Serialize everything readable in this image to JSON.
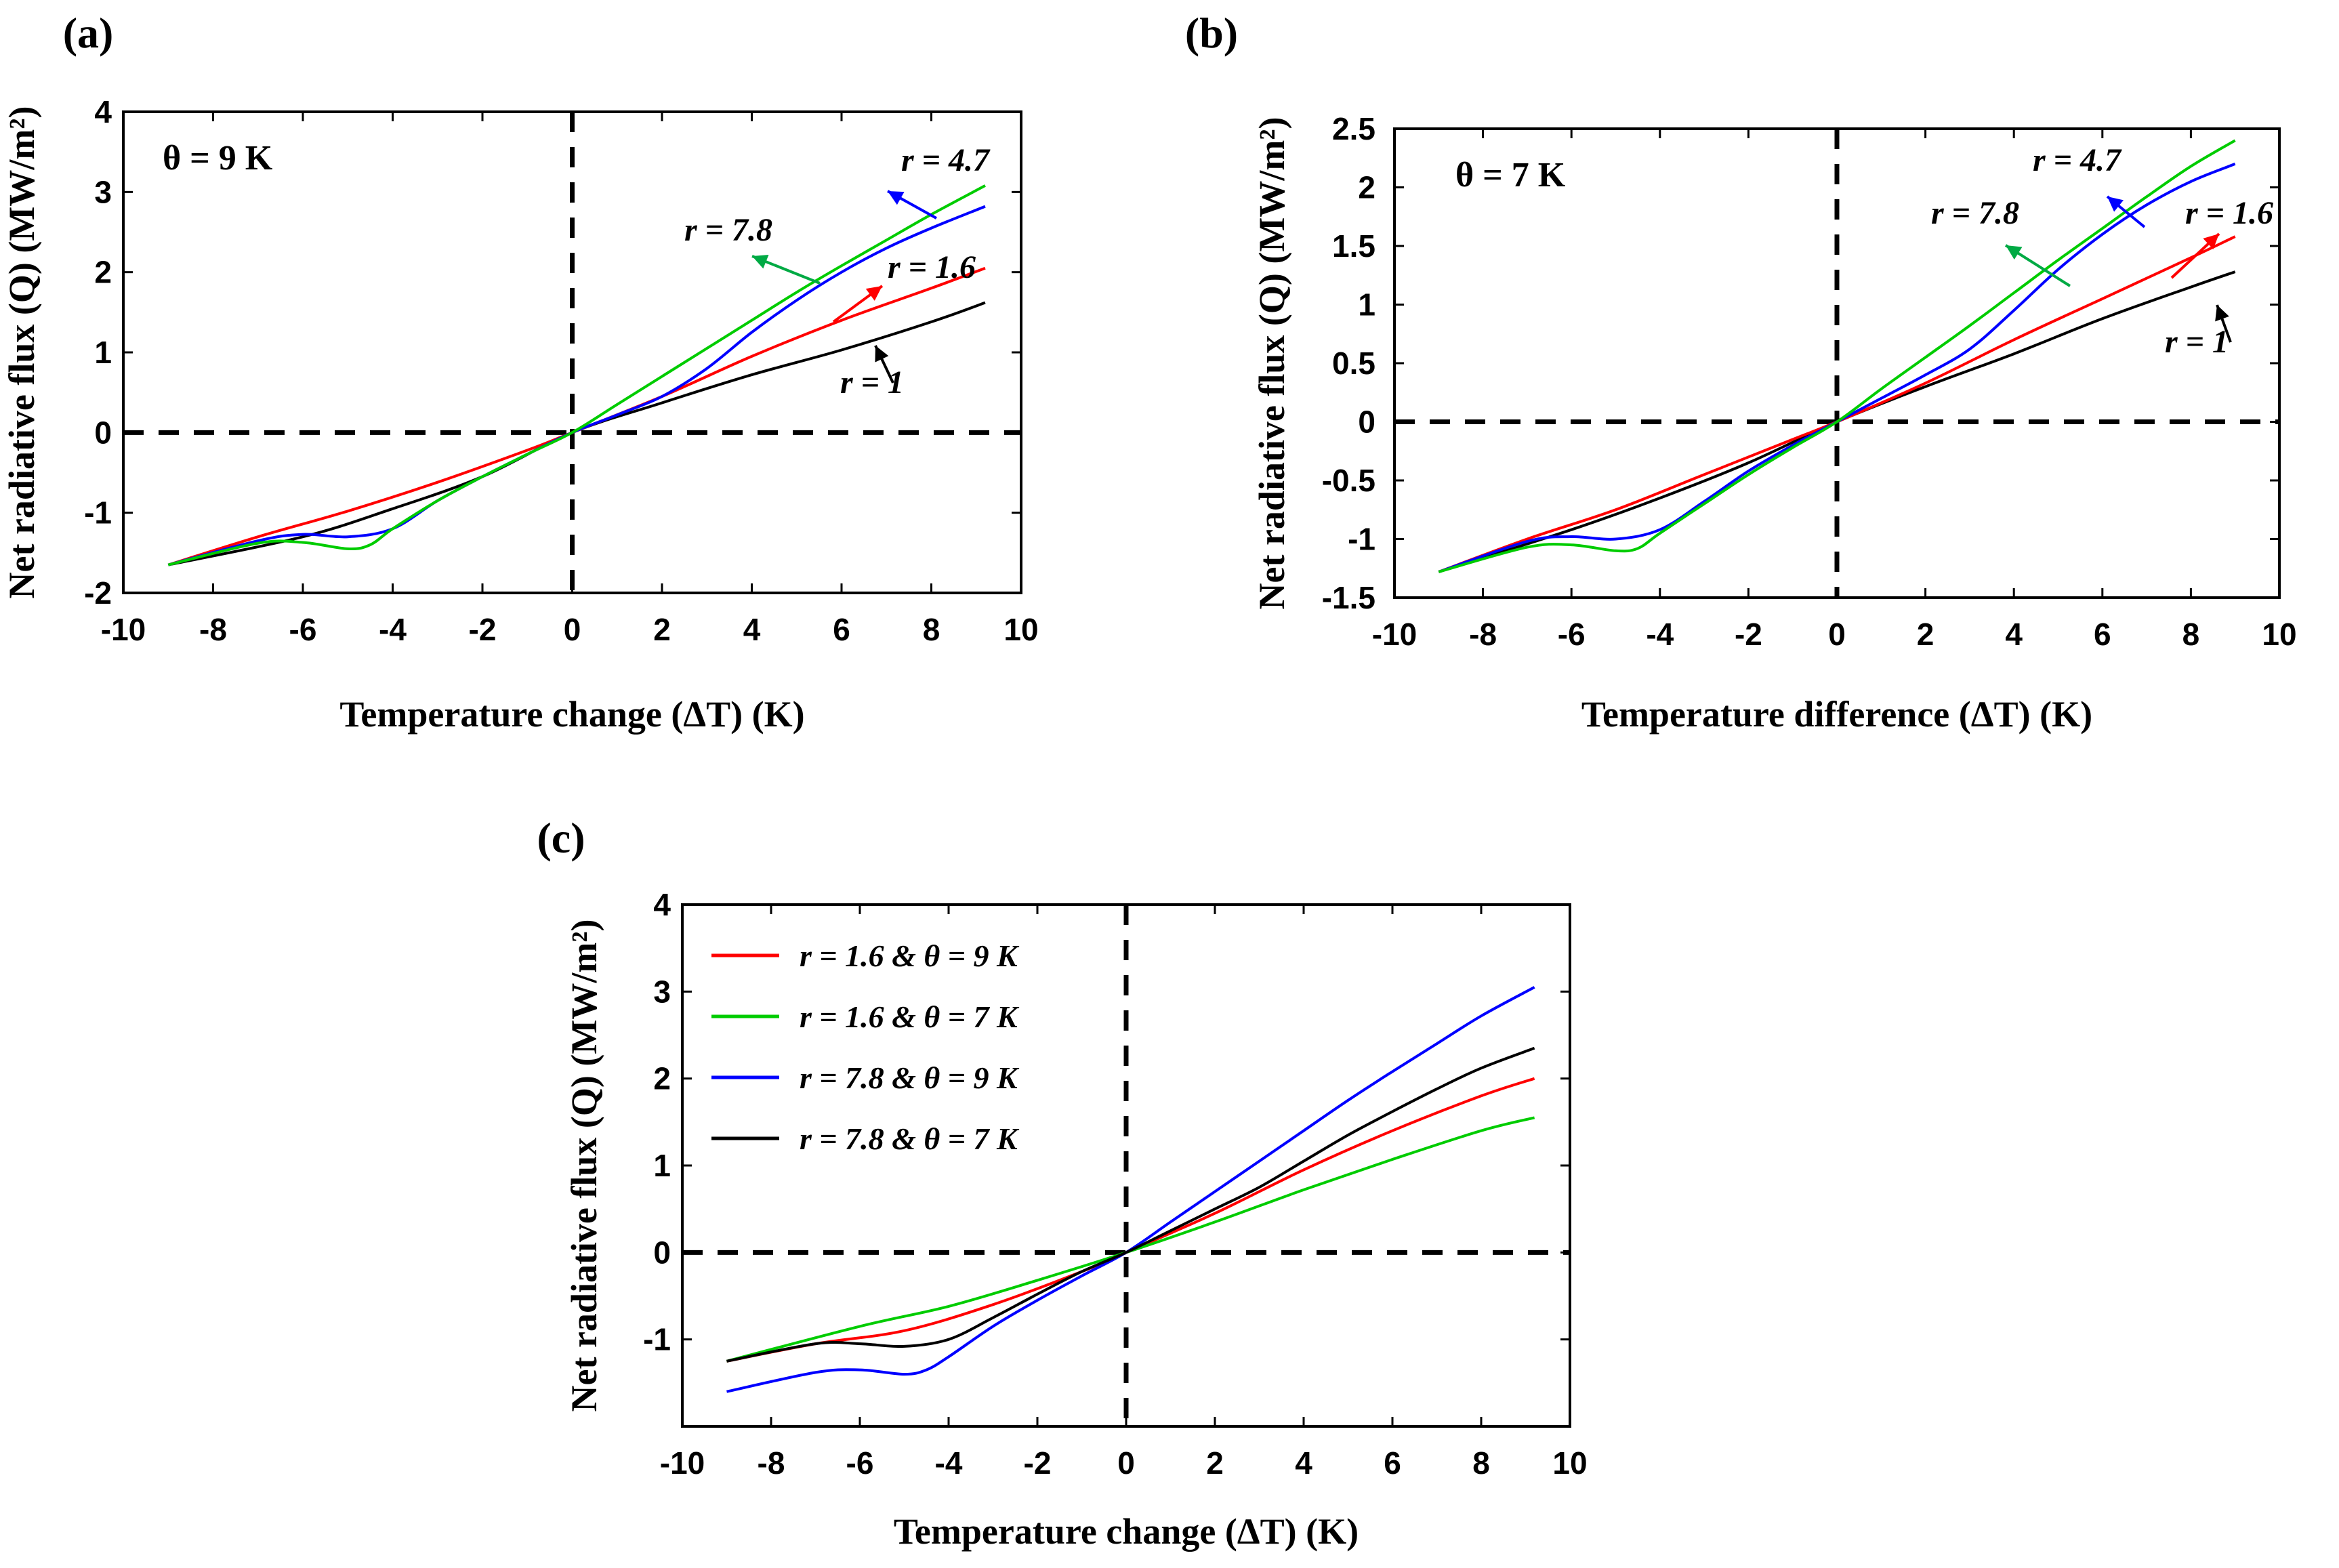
{
  "chart_data": [
    {
      "type": "line",
      "panel_label": "(a)",
      "theta_label": "θ = 9 K",
      "xlabel": "Temperature change (ΔT) (K)",
      "ylabel": "Net radiative flux (Q) (MW/m²)",
      "xlim": [
        -10,
        10
      ],
      "ylim": [
        -2,
        4
      ],
      "xticks": [
        -10,
        -8,
        -6,
        -4,
        -2,
        0,
        2,
        4,
        6,
        8,
        10
      ],
      "yticks": [
        -2,
        -1,
        0,
        1,
        2,
        3,
        4
      ],
      "series": [
        {
          "name": "r = 1",
          "color": "#000000",
          "x": [
            -9,
            -6,
            -4,
            -2,
            0,
            2,
            4,
            6,
            8,
            9.2
          ],
          "y": [
            -1.65,
            -1.3,
            -0.95,
            -0.55,
            0,
            0.37,
            0.72,
            1.03,
            1.38,
            1.62
          ]
        },
        {
          "name": "r = 1.6",
          "color": "#ff0000",
          "x": [
            -9,
            -7,
            -5,
            -3,
            -1,
            0,
            2,
            4,
            6,
            8,
            9.2
          ],
          "y": [
            -1.65,
            -1.3,
            -0.98,
            -0.62,
            -0.22,
            0,
            0.45,
            0.95,
            1.4,
            1.8,
            2.05
          ]
        },
        {
          "name": "r = 4.7",
          "color": "#0000ff",
          "x": [
            -9,
            -7,
            -6,
            -5,
            -4,
            -3,
            -2,
            -1,
            0,
            1,
            2,
            3,
            4,
            5,
            6,
            7,
            8,
            9.2
          ],
          "y": [
            -1.65,
            -1.35,
            -1.27,
            -1.3,
            -1.2,
            -0.85,
            -0.55,
            -0.27,
            0,
            0.22,
            0.45,
            0.8,
            1.25,
            1.65,
            2.0,
            2.3,
            2.55,
            2.82
          ]
        },
        {
          "name": "r = 7.8",
          "color": "#00cc00",
          "x": [
            -9,
            -7,
            -6,
            -5,
            -4.5,
            -4,
            -3,
            -2,
            -1,
            0,
            1,
            2,
            3,
            4,
            5,
            6,
            7,
            8,
            9.2
          ],
          "y": [
            -1.65,
            -1.38,
            -1.37,
            -1.45,
            -1.4,
            -1.2,
            -0.85,
            -0.55,
            -0.27,
            0,
            0.35,
            0.7,
            1.05,
            1.4,
            1.75,
            2.08,
            2.4,
            2.72,
            3.08
          ]
        }
      ],
      "annotations": [
        {
          "text": "r = 4.7",
          "color": "#0000ff"
        },
        {
          "text": "r = 7.8",
          "color": "#00aa44"
        },
        {
          "text": "r = 1.6",
          "color": "#ff0000"
        },
        {
          "text": "r = 1",
          "color": "#000000"
        }
      ]
    },
    {
      "type": "line",
      "panel_label": "(b)",
      "theta_label": "θ = 7 K",
      "xlabel": "Temperature difference (ΔT) (K)",
      "ylabel": "Net radiative flux (Q) (MW/m²)",
      "xlim": [
        -10,
        10
      ],
      "ylim": [
        -1.5,
        2.5
      ],
      "xticks": [
        -10,
        -8,
        -6,
        -4,
        -2,
        0,
        2,
        4,
        6,
        8,
        10
      ],
      "yticks": [
        -1.5,
        -1,
        -0.5,
        0,
        0.5,
        1,
        1.5,
        2,
        2.5
      ],
      "series": [
        {
          "name": "r = 1",
          "color": "#000000",
          "x": [
            -9,
            -6,
            -4,
            -2,
            0,
            2,
            4,
            6,
            8,
            9
          ],
          "y": [
            -1.28,
            -0.92,
            -0.65,
            -0.35,
            0,
            0.3,
            0.58,
            0.88,
            1.15,
            1.28
          ]
        },
        {
          "name": "r = 1.6",
          "color": "#ff0000",
          "x": [
            -9,
            -7,
            -5,
            -3,
            -1,
            0,
            2,
            4,
            6,
            8,
            9
          ],
          "y": [
            -1.28,
            -1.0,
            -0.75,
            -0.45,
            -0.15,
            0,
            0.33,
            0.7,
            1.05,
            1.4,
            1.58
          ]
        },
        {
          "name": "r = 4.7",
          "color": "#0000ff",
          "x": [
            -9,
            -7,
            -6,
            -5,
            -4,
            -3,
            -2,
            -1,
            0,
            1,
            2,
            3,
            4,
            5,
            6,
            7,
            8,
            9
          ],
          "y": [
            -1.28,
            -1.02,
            -0.98,
            -1.0,
            -0.92,
            -0.68,
            -0.42,
            -0.2,
            0,
            0.2,
            0.4,
            0.62,
            0.95,
            1.3,
            1.6,
            1.85,
            2.05,
            2.2
          ]
        },
        {
          "name": "r = 7.8",
          "color": "#00cc00",
          "x": [
            -9,
            -7,
            -6,
            -5,
            -4.5,
            -4,
            -3,
            -2,
            -1,
            0,
            1,
            2,
            3,
            4,
            5,
            6,
            7,
            8,
            9
          ],
          "y": [
            -1.28,
            -1.07,
            -1.05,
            -1.1,
            -1.08,
            -0.95,
            -0.7,
            -0.45,
            -0.22,
            0,
            0.28,
            0.55,
            0.82,
            1.1,
            1.38,
            1.65,
            1.92,
            2.18,
            2.4
          ]
        }
      ],
      "annotations": [
        {
          "text": "r = 4.7",
          "color": "#0000ff"
        },
        {
          "text": "r = 7.8",
          "color": "#00aa44"
        },
        {
          "text": "r = 1.6",
          "color": "#ff0000"
        },
        {
          "text": "r = 1",
          "color": "#000000"
        }
      ]
    },
    {
      "type": "line",
      "panel_label": "(c)",
      "xlabel": "Temperature change (ΔT) (K)",
      "ylabel": "Net radiative flux (Q) (MW/m²)",
      "xlim": [
        -10,
        10
      ],
      "ylim": [
        -2,
        4
      ],
      "xticks": [
        -10,
        -8,
        -6,
        -4,
        -2,
        0,
        2,
        4,
        6,
        8,
        10
      ],
      "yticks": [
        -1,
        0,
        1,
        2,
        3,
        4
      ],
      "legend_position": "top-left",
      "series": [
        {
          "name": "r = 1.6 & θ = 9 K",
          "color": "#ff0000",
          "x": [
            -9,
            -7,
            -5,
            -3,
            -1,
            0,
            2,
            4,
            6,
            8,
            9.2
          ],
          "y": [
            -1.25,
            -1.05,
            -0.9,
            -0.6,
            -0.22,
            0,
            0.45,
            0.95,
            1.4,
            1.8,
            2.0
          ]
        },
        {
          "name": "r = 1.6 & θ = 7 K",
          "color": "#00cc00",
          "x": [
            -9,
            -6,
            -4,
            -2,
            0,
            2,
            4,
            6,
            8,
            9.2
          ],
          "y": [
            -1.25,
            -0.85,
            -0.62,
            -0.32,
            0,
            0.35,
            0.72,
            1.07,
            1.4,
            1.55
          ]
        },
        {
          "name": "r = 7.8 & θ = 9 K",
          "color": "#0000ff",
          "x": [
            -9,
            -7,
            -6,
            -5,
            -4.5,
            -4,
            -3,
            -2,
            -1,
            0,
            1,
            2,
            3,
            4,
            5,
            6,
            7,
            8,
            9.2
          ],
          "y": [
            -1.6,
            -1.38,
            -1.35,
            -1.4,
            -1.35,
            -1.2,
            -0.85,
            -0.55,
            -0.27,
            0,
            0.35,
            0.7,
            1.05,
            1.4,
            1.75,
            2.08,
            2.4,
            2.72,
            3.05
          ]
        },
        {
          "name": "r = 7.8 & θ = 7 K",
          "color": "#000000",
          "x": [
            -9,
            -7,
            -6,
            -5,
            -4,
            -3,
            -2,
            -1,
            0,
            1,
            2,
            3,
            4,
            5,
            6,
            7,
            8,
            9.2
          ],
          "y": [
            -1.25,
            -1.05,
            -1.05,
            -1.08,
            -1.0,
            -0.75,
            -0.48,
            -0.22,
            0,
            0.25,
            0.5,
            0.75,
            1.05,
            1.35,
            1.62,
            1.88,
            2.12,
            2.35
          ]
        }
      ]
    }
  ]
}
